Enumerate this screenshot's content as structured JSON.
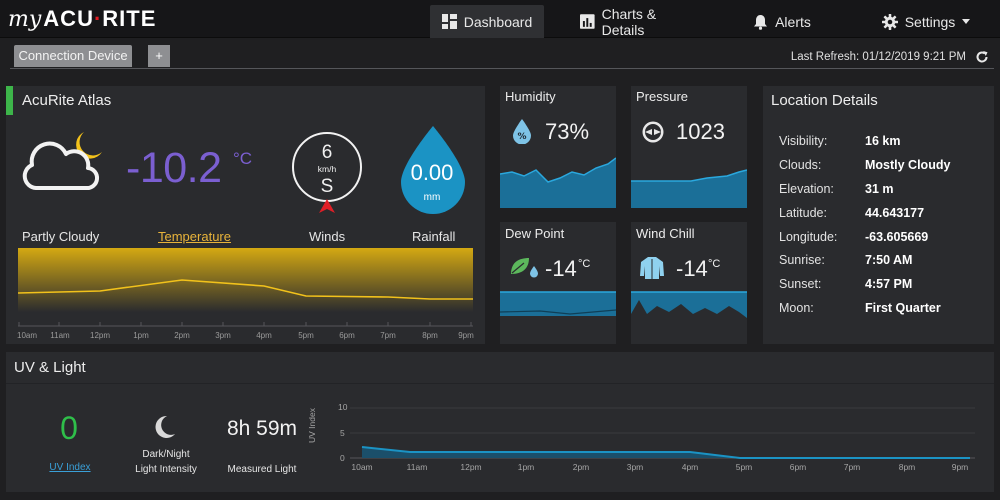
{
  "app": {
    "logo_my": "my",
    "logo_brand_a": "ACU",
    "logo_brand_b": "RITE"
  },
  "nav": {
    "dashboard": "Dashboard",
    "charts": "Charts & Details",
    "alerts": "Alerts",
    "settings": "Settings"
  },
  "subbar": {
    "tab": "Connection Device",
    "add": "+",
    "last_refresh": "Last Refresh: 01/12/2019 9:21 PM"
  },
  "atlas": {
    "title": "AcuRite Atlas",
    "condition": "Partly Cloudy",
    "temperature": "-10.2",
    "temp_unit": "°C",
    "temperature_label": "Temperature",
    "wind_speed": "6",
    "wind_unit": "km/h",
    "wind_dir": "S",
    "winds_label": "Winds",
    "rainfall": "0.00",
    "rain_unit": "mm",
    "rainfall_label": "Rainfall",
    "chart_times": [
      "10am",
      "11am",
      "12pm",
      "1pm",
      "2pm",
      "3pm",
      "4pm",
      "5pm",
      "6pm",
      "7pm",
      "8pm",
      "9pm"
    ]
  },
  "tiles": {
    "humidity": {
      "title": "Humidity",
      "value": "73%"
    },
    "pressure": {
      "title": "Pressure",
      "value": "1023"
    },
    "dew_point": {
      "title": "Dew Point",
      "value": "-14",
      "unit": "°C"
    },
    "wind_chill": {
      "title": "Wind Chill",
      "value": "-14",
      "unit": "°C"
    }
  },
  "location": {
    "title": "Location Details",
    "rows": [
      {
        "key": "Visibility:",
        "value": "16 km"
      },
      {
        "key": "Clouds:",
        "value": "Mostly Cloudy"
      },
      {
        "key": "Elevation:",
        "value": "31 m"
      },
      {
        "key": "Latitude:",
        "value": "44.643177"
      },
      {
        "key": "Longitude:",
        "value": "-63.605669"
      },
      {
        "key": "Sunrise:",
        "value": "7:50 AM"
      },
      {
        "key": "Sunset:",
        "value": "4:57 PM"
      },
      {
        "key": "Moon:",
        "value": "First Quarter"
      }
    ]
  },
  "uv": {
    "title": "UV & Light",
    "uv_value": "0",
    "uv_label": "UV Index",
    "light_line1": "Dark/Night",
    "light_line2": "Light Intensity",
    "measured": "8h 59m",
    "measured_label": "Measured Light",
    "y_axis_label": "UV Index",
    "y_ticks": [
      "10",
      "5",
      "0"
    ],
    "x_ticks": [
      "10am",
      "11am",
      "12pm",
      "1pm",
      "2pm",
      "3pm",
      "4pm",
      "5pm",
      "6pm",
      "7pm",
      "8pm",
      "9pm"
    ]
  },
  "colors": {
    "accent_blue": "#1b93c4",
    "temp_purple": "#7b5fd1",
    "temp_yellow": "#f2c21b",
    "status_green": "#3db54a",
    "wind_red": "#e01e26"
  }
}
